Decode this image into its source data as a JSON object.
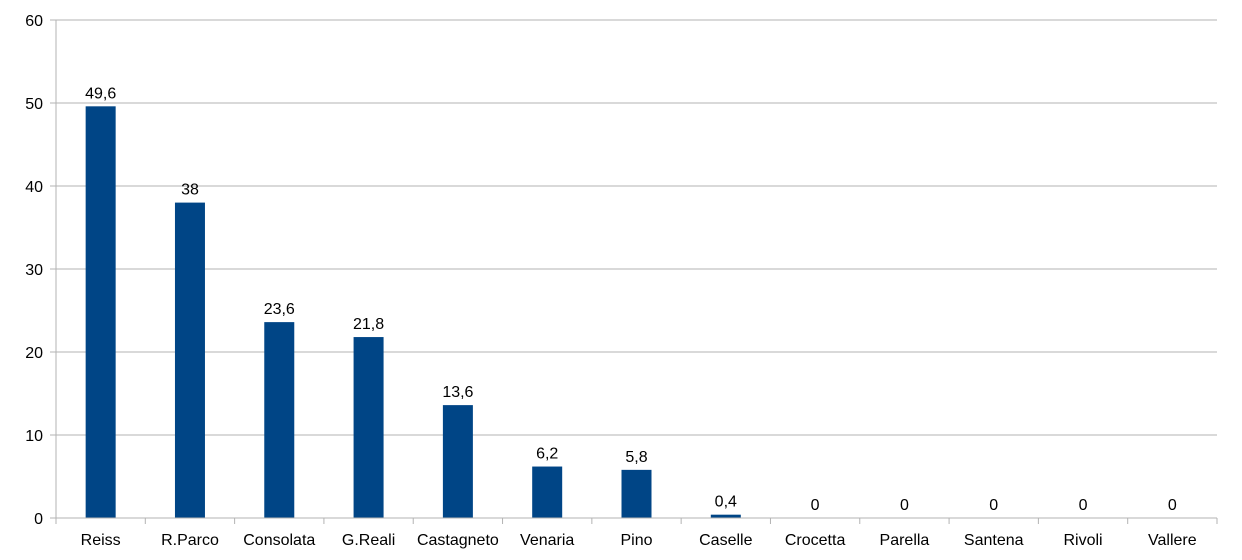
{
  "chart_data": {
    "type": "bar",
    "categories": [
      "Reiss",
      "R.Parco",
      "Consolata",
      "G.Reali",
      "Castagneto",
      "Venaria",
      "Pino",
      "Caselle",
      "Crocetta",
      "Parella",
      "Santena",
      "Rivoli",
      "Vallere"
    ],
    "values": [
      49.6,
      38,
      23.6,
      21.8,
      13.6,
      6.2,
      5.8,
      0.4,
      0,
      0,
      0,
      0,
      0
    ],
    "value_labels": [
      "49,6",
      "38",
      "23,6",
      "21,8",
      "13,6",
      "6,2",
      "5,8",
      "0,4",
      "0",
      "0",
      "0",
      "0",
      "0"
    ],
    "ylim": [
      0,
      60
    ],
    "yticks": [
      "0",
      "10",
      "20",
      "30",
      "40",
      "50",
      "60"
    ],
    "grid": true,
    "legend": "none",
    "colors": {
      "bar": "#004586",
      "grid": "#b3b3b3",
      "axis": "#b3b3b3"
    }
  }
}
